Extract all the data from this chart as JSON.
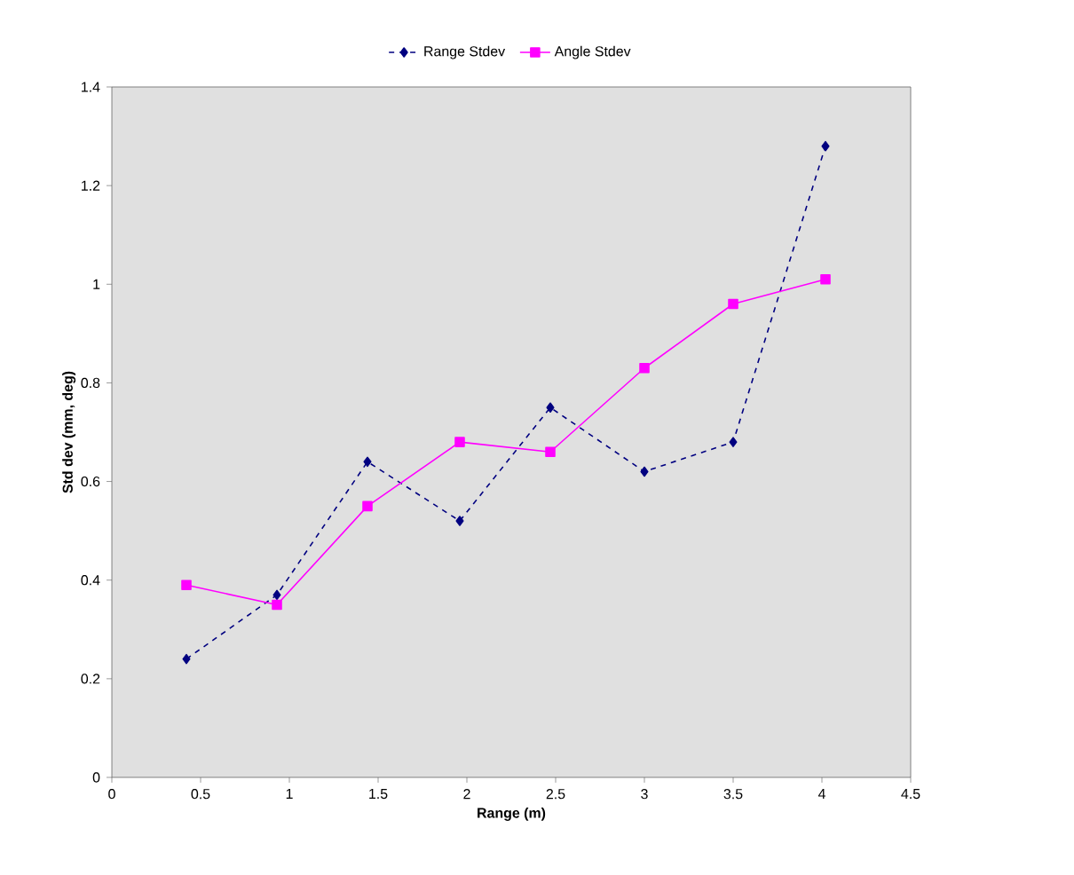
{
  "chart_data": {
    "type": "line",
    "xlabel": "Range (m)",
    "ylabel": "Std dev (mm, deg)",
    "x": [
      0.42,
      0.93,
      1.44,
      1.96,
      2.47,
      3.0,
      3.5,
      4.02
    ],
    "series": [
      {
        "name": "Range Stdev",
        "color": "#000080",
        "marker": "diamond",
        "line_style": "dashed",
        "values": [
          0.24,
          0.37,
          0.64,
          0.52,
          0.75,
          0.62,
          0.68,
          1.28
        ]
      },
      {
        "name": "Angle Stdev",
        "color": "#ff00ff",
        "marker": "square",
        "line_style": "solid",
        "values": [
          0.39,
          0.35,
          0.55,
          0.68,
          0.66,
          0.83,
          0.96,
          1.01
        ]
      }
    ],
    "xlim": [
      0,
      4.5
    ],
    "xticks": [
      0,
      0.5,
      1,
      1.5,
      2,
      2.5,
      3,
      3.5,
      4,
      4.5
    ],
    "ylim": [
      0,
      1.4
    ],
    "yticks": [
      0,
      0.2,
      0.4,
      0.6,
      0.8,
      1,
      1.2,
      1.4
    ],
    "grid": false,
    "legend": "top"
  }
}
